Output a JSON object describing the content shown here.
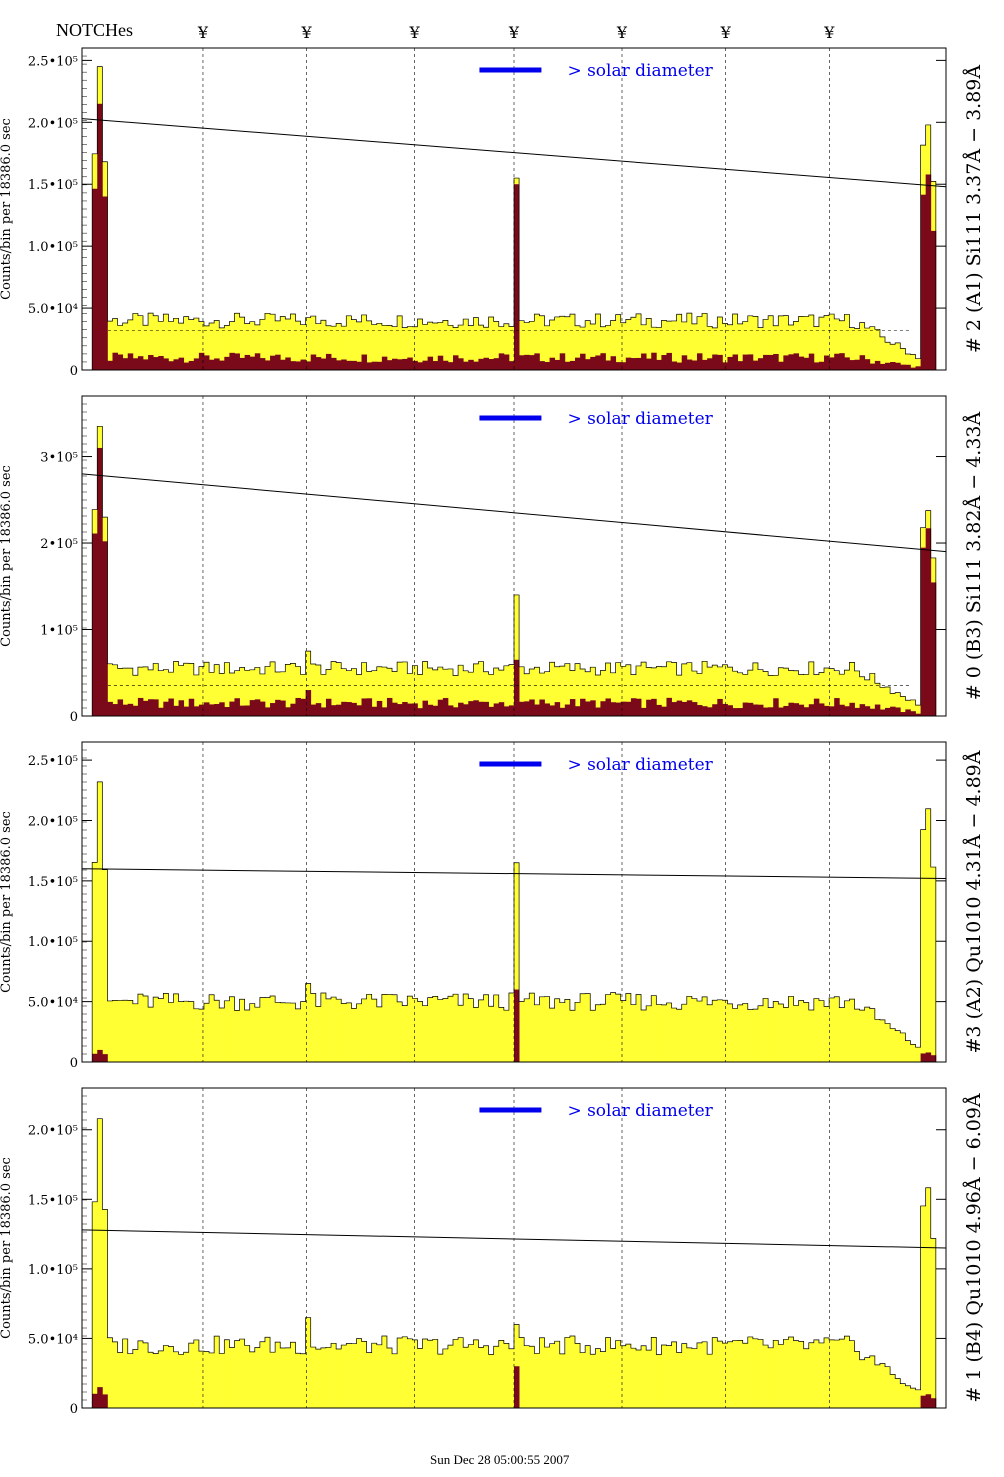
{
  "header": {
    "notches_label": "NOTCHes",
    "notch_symbol": "¥"
  },
  "footer": {
    "timestamp": "Sun Dec 28 05:00:55 2007"
  },
  "colors": {
    "fill_total": "#ffff33",
    "fill_sub": "#7a0a1a",
    "legend": "#0000ee",
    "line": "#000000"
  },
  "notches_x": [
    0.14,
    0.26,
    0.385,
    0.5,
    0.625,
    0.745,
    0.865
  ],
  "chart_data": [
    {
      "type": "histogram",
      "panel_label": "# 2 (A1) Si111  3.37Å − 3.89Å",
      "ylabel": "Counts/bin per  18386.0 sec",
      "legend": "> solar diameter",
      "yticks": [
        {
          "v": 0,
          "label": "0"
        },
        {
          "v": 50000,
          "label": "5.0•10⁴"
        },
        {
          "v": 100000,
          "label": "1.0•10⁵"
        },
        {
          "v": 150000,
          "label": "1.5•10⁵"
        },
        {
          "v": 200000,
          "label": "2.0•10⁵"
        },
        {
          "v": 250000,
          "label": "2.5•10⁵"
        }
      ],
      "ylim": [
        0,
        260000
      ],
      "peaks_total": [
        245000,
        0,
        155000,
        200000
      ],
      "peaks_sub": [
        215000,
        0,
        150000,
        160000
      ],
      "baseline_total": 40000,
      "baseline_sub": 10000,
      "trend": [
        203000,
        148000
      ],
      "dashed_level": 32000
    },
    {
      "type": "histogram",
      "panel_label": "# 0 (B3) Si111  3.82Å − 4.33Å",
      "ylabel": "Counts/bin per  18386.0 sec",
      "legend": "> solar diameter",
      "yticks": [
        {
          "v": 0,
          "label": "0"
        },
        {
          "v": 100000,
          "label": "1•10⁵"
        },
        {
          "v": 200000,
          "label": "2•10⁵"
        },
        {
          "v": 300000,
          "label": "3•10⁵"
        }
      ],
      "ylim": [
        0,
        370000
      ],
      "peaks_total": [
        335000,
        75000,
        140000,
        240000
      ],
      "peaks_sub": [
        310000,
        30000,
        65000,
        220000
      ],
      "baseline_total": 55000,
      "baseline_sub": 15000,
      "trend": [
        280000,
        190000
      ],
      "dashed_level": 35000
    },
    {
      "type": "histogram",
      "panel_label": "#3 (A2) Qu1010  4.31Å − 4.89Å",
      "ylabel": "Counts/bin per  18386.0 sec",
      "legend": "> solar diameter",
      "yticks": [
        {
          "v": 0,
          "label": "0"
        },
        {
          "v": 50000,
          "label": "5.0•10⁴"
        },
        {
          "v": 100000,
          "label": "1.0•10⁵"
        },
        {
          "v": 150000,
          "label": "1.5•10⁵"
        },
        {
          "v": 200000,
          "label": "2.0•10⁵"
        },
        {
          "v": 250000,
          "label": "2.5•10⁵"
        }
      ],
      "ylim": [
        0,
        265000
      ],
      "peaks_total": [
        232000,
        65000,
        165000,
        212000
      ],
      "peaks_sub": [
        10000,
        0,
        60000,
        8000
      ],
      "baseline_total": 50000,
      "baseline_sub": 0,
      "trend": [
        160000,
        152000
      ],
      "dashed_level": 0
    },
    {
      "type": "histogram",
      "panel_label": "# 1 (B4) Qu1010 4.96Å − 6.09Å",
      "ylabel": "Counts/bin per  18386.0 sec",
      "legend": "> solar diameter",
      "yticks": [
        {
          "v": 0,
          "label": "0"
        },
        {
          "v": 50000,
          "label": "5.0•10⁴"
        },
        {
          "v": 100000,
          "label": "1.0•10⁵"
        },
        {
          "v": 150000,
          "label": "1.5•10⁵"
        },
        {
          "v": 200000,
          "label": "2.0•10⁵"
        }
      ],
      "ylim": [
        0,
        230000
      ],
      "peaks_total": [
        208000,
        65000,
        60000,
        160000
      ],
      "peaks_sub": [
        15000,
        0,
        30000,
        10000
      ],
      "baseline_total": 45000,
      "baseline_sub": 0,
      "trend": [
        128000,
        115000
      ],
      "dashed_level": 0
    }
  ]
}
